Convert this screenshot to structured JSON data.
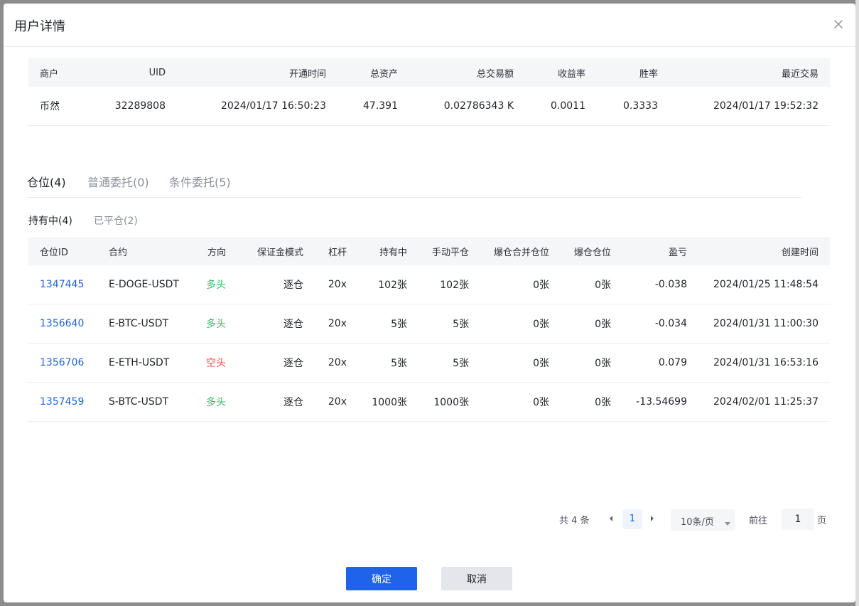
{
  "dialog": {
    "title": "用户详情"
  },
  "user_table": {
    "headers": [
      "商户",
      "UID",
      "开通时间",
      "总资产",
      "总交易额",
      "收益率",
      "胜率",
      "最近交易"
    ],
    "row": [
      "币然",
      "32289808",
      "2024/01/17 16:50:23",
      "47.391",
      "0.02786343 K",
      "0.0011",
      "0.3333",
      "2024/01/17 19:52:32"
    ]
  },
  "tabs": [
    "仓位(4)",
    "普通委托(0)",
    "条件委托(5)"
  ],
  "active_tab": "仓位(4)",
  "subtabs": [
    "持有中(4)",
    "已平仓(2)"
  ],
  "active_subtab": "持有中(4)",
  "position_table": {
    "headers": [
      "仓位ID",
      "合约",
      "方向",
      "保证金模式",
      "杠杆",
      "持有中",
      "手动平仓",
      "爆仓合并仓位",
      "爆仓仓位",
      "盈亏",
      "创建时间"
    ],
    "rows": [
      [
        "1347445",
        "E-DOGE-USDT",
        "多头",
        "逐仓",
        "20x",
        "102张",
        "102张",
        "0张",
        "0张",
        "-0.038",
        "2024/01/25 11:48:54"
      ],
      [
        "1356640",
        "E-BTC-USDT",
        "多头",
        "逐仓",
        "20x",
        "5张",
        "5张",
        "0张",
        "0张",
        "-0.034",
        "2024/01/31 11:00:30"
      ],
      [
        "1356706",
        "E-ETH-USDT",
        "空头",
        "逐仓",
        "20x",
        "5张",
        "5张",
        "0张",
        "0张",
        "0.079",
        "2024/01/31 16:53:16"
      ],
      [
        "1357459",
        "S-BTC-USDT",
        "多头",
        "逐仓",
        "20x",
        "1000张",
        "1000张",
        "0张",
        "0张",
        "-13.54699",
        "2024/02/01 11:25:37"
      ]
    ]
  },
  "pagination": {
    "total": "共 4 条",
    "current_page": "1",
    "page_size": "10条/页",
    "goto_label": "前往",
    "goto_value": "1",
    "page_suffix": "页"
  },
  "buttons": {
    "ok": "确定",
    "cancel": "取消"
  },
  "colors": {
    "link": "#1f63d8",
    "long": "#35b865",
    "short": "#f05252",
    "primary": "#1f63ea"
  }
}
